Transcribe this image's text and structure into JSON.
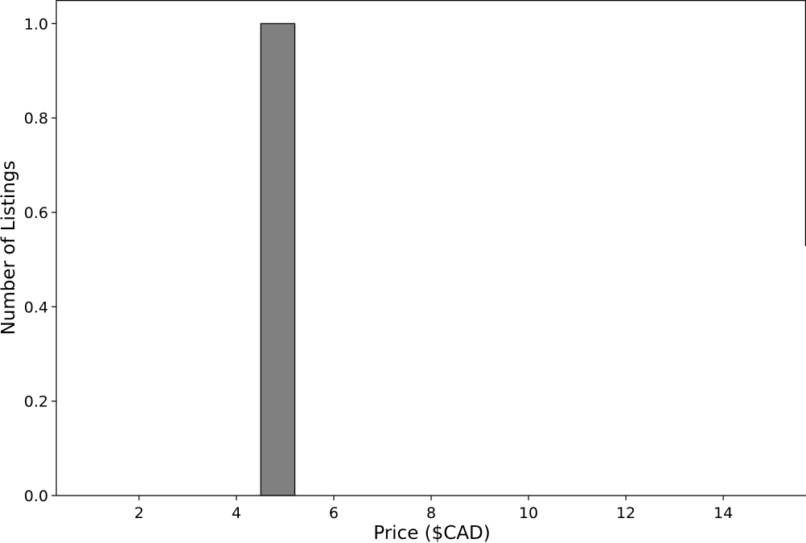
{
  "chart_data": {
    "type": "bar",
    "xlabel": "Price ($CAD)",
    "ylabel": "Number of Listings",
    "xlim": [
      0.3,
      15.7
    ],
    "ylim": [
      0.0,
      1.05
    ],
    "xticks": [
      "2",
      "4",
      "6",
      "8",
      "10",
      "12",
      "14"
    ],
    "yticks": [
      "0.0",
      "0.2",
      "0.4",
      "0.6",
      "0.8",
      "1.0"
    ],
    "bins": [
      {
        "x0": 1.0,
        "x1": 1.7,
        "value": 0
      },
      {
        "x0": 1.7,
        "x1": 2.4,
        "value": 0
      },
      {
        "x0": 2.4,
        "x1": 3.1,
        "value": 0
      },
      {
        "x0": 3.1,
        "x1": 3.8,
        "value": 0
      },
      {
        "x0": 3.8,
        "x1": 4.5,
        "value": 0
      },
      {
        "x0": 4.5,
        "x1": 5.2,
        "value": 1
      },
      {
        "x0": 5.2,
        "x1": 5.9,
        "value": 0
      },
      {
        "x0": 5.9,
        "x1": 6.6,
        "value": 0
      },
      {
        "x0": 6.6,
        "x1": 7.3,
        "value": 0
      },
      {
        "x0": 7.3,
        "x1": 8.0,
        "value": 0
      },
      {
        "x0": 8.0,
        "x1": 8.7,
        "value": 0
      },
      {
        "x0": 8.7,
        "x1": 9.4,
        "value": 0
      },
      {
        "x0": 9.4,
        "x1": 10.1,
        "value": 0
      },
      {
        "x0": 10.1,
        "x1": 10.8,
        "value": 0
      },
      {
        "x0": 10.8,
        "x1": 11.5,
        "value": 0
      },
      {
        "x0": 11.5,
        "x1": 12.2,
        "value": 0
      },
      {
        "x0": 12.2,
        "x1": 12.9,
        "value": 0
      },
      {
        "x0": 12.9,
        "x1": 13.6,
        "value": 0
      },
      {
        "x0": 13.6,
        "x1": 14.3,
        "value": 0
      },
      {
        "x0": 14.3,
        "x1": 15.0,
        "value": 0
      }
    ],
    "bar_color": "#808080",
    "edge_color": "#000000",
    "grid": false,
    "spines": [
      "left",
      "bottom",
      "top",
      "right-partial"
    ]
  }
}
